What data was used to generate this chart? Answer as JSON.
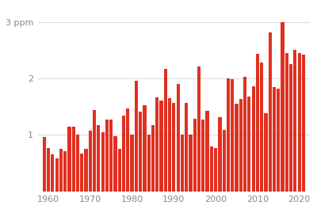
{
  "years": [
    1959,
    1960,
    1961,
    1962,
    1963,
    1964,
    1965,
    1966,
    1967,
    1968,
    1969,
    1970,
    1971,
    1972,
    1973,
    1974,
    1975,
    1976,
    1977,
    1978,
    1979,
    1980,
    1981,
    1982,
    1983,
    1984,
    1985,
    1986,
    1987,
    1988,
    1989,
    1990,
    1991,
    1992,
    1993,
    1994,
    1995,
    1996,
    1997,
    1998,
    1999,
    2000,
    2001,
    2002,
    2003,
    2004,
    2005,
    2006,
    2007,
    2008,
    2009,
    2010,
    2011,
    2012,
    2013,
    2014,
    2015,
    2016,
    2017,
    2018,
    2019,
    2020,
    2021
  ],
  "values": [
    0.96,
    0.77,
    0.65,
    0.59,
    0.75,
    0.71,
    1.14,
    1.14,
    1.0,
    0.67,
    0.75,
    1.08,
    1.44,
    1.18,
    1.05,
    1.27,
    1.27,
    0.98,
    0.75,
    1.35,
    1.47,
    1.0,
    1.96,
    1.41,
    1.53,
    1.0,
    1.18,
    1.67,
    1.61,
    2.17,
    1.65,
    1.57,
    1.9,
    1.0,
    1.57,
    1.0,
    1.29,
    2.22,
    1.27,
    1.43,
    0.8,
    0.76,
    1.31,
    1.09,
    2.0,
    1.99,
    1.56,
    1.64,
    2.04,
    1.68,
    1.87,
    2.44,
    2.29,
    1.39,
    2.82,
    1.85,
    1.82,
    3.01,
    2.46,
    2.26,
    2.51,
    2.46,
    2.43
  ],
  "bar_color": "#e03020",
  "background_color": "#ffffff",
  "ytick_labels": [
    "1",
    "2",
    "3 ppm"
  ],
  "ytick_values": [
    1,
    2,
    3
  ],
  "xtick_years": [
    1960,
    1970,
    1980,
    1990,
    2000,
    2010,
    2020
  ],
  "ylim": [
    0,
    3.3
  ],
  "xlim": [
    1957.5,
    2022.5
  ],
  "grid_color": "#dddddd",
  "tick_color": "#888888"
}
